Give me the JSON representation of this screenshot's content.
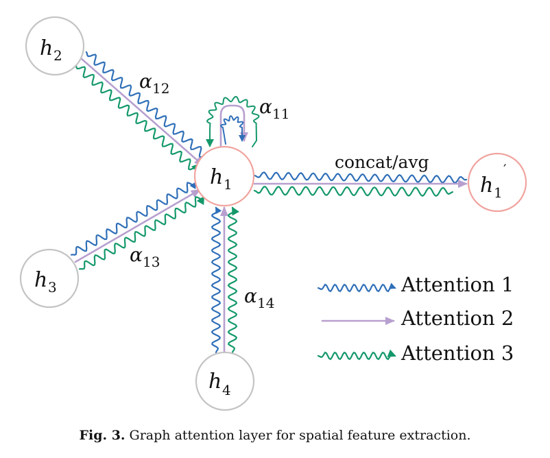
{
  "colors": {
    "attention1": "#2f6fb8",
    "attention2": "#b79fcf",
    "attention3": "#14986a",
    "node_stroke": "#c4c4c4",
    "center_stroke": "#f0a39e"
  },
  "nodes": {
    "h1": {
      "base": "h",
      "sub": "1"
    },
    "h2": {
      "base": "h",
      "sub": "2"
    },
    "h3": {
      "base": "h",
      "sub": "3"
    },
    "h4": {
      "base": "h",
      "sub": "4"
    },
    "h1_prime": {
      "base": "h",
      "sub": "1",
      "prime": "′"
    }
  },
  "edge_labels": {
    "a12": {
      "base": "α",
      "sub": "12"
    },
    "a11": {
      "base": "α",
      "sub": "11"
    },
    "a13": {
      "base": "α",
      "sub": "13"
    },
    "a14": {
      "base": "α",
      "sub": "14"
    },
    "concat": "concat/avg"
  },
  "legend": [
    {
      "label": "Attention 1",
      "style": "wavy",
      "color": "#2f6fb8"
    },
    {
      "label": "Attention 2",
      "style": "straight",
      "color": "#b79fcf"
    },
    {
      "label": "Attention 3",
      "style": "wavy",
      "color": "#14986a"
    }
  ],
  "caption": {
    "prefix": "Fig. 3.",
    "text": "Graph attention layer for spatial feature extraction."
  }
}
